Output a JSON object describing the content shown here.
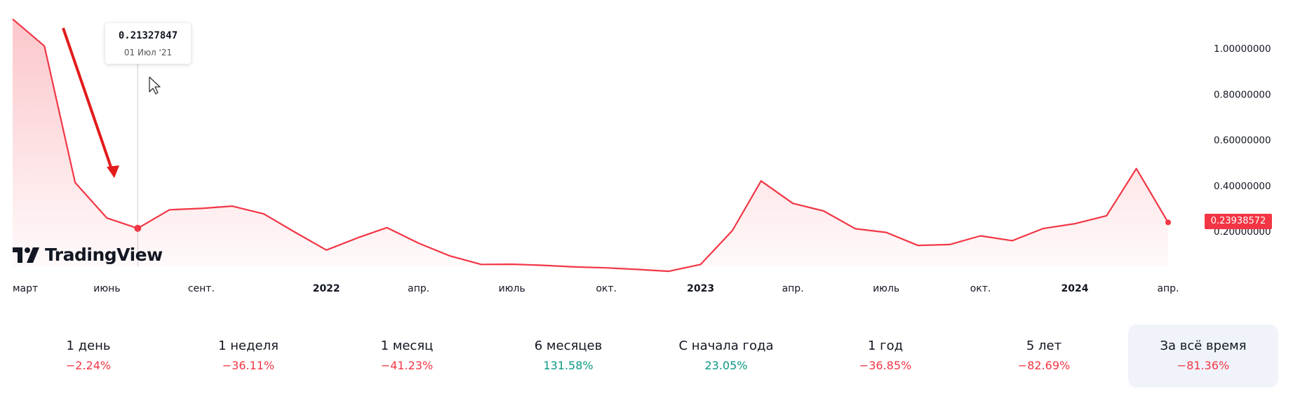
{
  "chart_data": {
    "type": "area",
    "line_color": "#f23645",
    "y_ticks": [
      "1.00000000",
      "0.80000000",
      "0.60000000",
      "0.40000000",
      "0.20000000"
    ],
    "y_tick_values": [
      1.0,
      0.8,
      0.6,
      0.4,
      0.2
    ],
    "ylim": [
      0.0,
      1.2
    ],
    "x_ticks": [
      {
        "label": "март",
        "date": "2021-03-01",
        "year": false
      },
      {
        "label": "июнь",
        "date": "2021-06-01",
        "year": false
      },
      {
        "label": "сент.",
        "date": "2021-09-01",
        "year": false
      },
      {
        "label": "2022",
        "date": "2022-01-01",
        "year": true
      },
      {
        "label": "апр.",
        "date": "2022-04-01",
        "year": false
      },
      {
        "label": "июль",
        "date": "2022-07-01",
        "year": false
      },
      {
        "label": "окт.",
        "date": "2022-10-01",
        "year": false
      },
      {
        "label": "2023",
        "date": "2023-01-01",
        "year": true
      },
      {
        "label": "апр.",
        "date": "2023-04-01",
        "year": false
      },
      {
        "label": "июль",
        "date": "2023-07-01",
        "year": false
      },
      {
        "label": "окт.",
        "date": "2023-10-01",
        "year": false
      },
      {
        "label": "2024",
        "date": "2024-01-01",
        "year": true
      },
      {
        "label": "апр.",
        "date": "2024-04-01",
        "year": false
      }
    ],
    "x": [
      "2021-03-01",
      "2021-04-01",
      "2021-05-01",
      "2021-06-01",
      "2021-07-01",
      "2021-08-01",
      "2021-09-01",
      "2021-10-01",
      "2021-11-01",
      "2021-12-01",
      "2022-01-01",
      "2022-02-01",
      "2022-03-01",
      "2022-04-01",
      "2022-05-01",
      "2022-06-01",
      "2022-07-01",
      "2022-08-01",
      "2022-09-01",
      "2022-10-01",
      "2022-11-01",
      "2022-12-01",
      "2023-01-01",
      "2023-02-01",
      "2023-03-01",
      "2023-04-01",
      "2023-05-01",
      "2023-06-01",
      "2023-07-01",
      "2023-08-01",
      "2023-09-01",
      "2023-10-01",
      "2023-11-01",
      "2023-12-01",
      "2024-01-01",
      "2024-02-01",
      "2024-03-01",
      "2024-04-01"
    ],
    "values": [
      1.128,
      1.01,
      0.413,
      0.258,
      0.213,
      0.294,
      0.3,
      0.31,
      0.276,
      0.197,
      0.118,
      0.172,
      0.216,
      0.148,
      0.093,
      0.055,
      0.056,
      0.051,
      0.044,
      0.04,
      0.033,
      0.025,
      0.055,
      0.203,
      0.42,
      0.322,
      0.289,
      0.211,
      0.195,
      0.138,
      0.142,
      0.18,
      0.159,
      0.212,
      0.233,
      0.268,
      0.474,
      0.239
    ],
    "tooltip": {
      "value": "0.21327847",
      "date": "01 Июл '21",
      "index": 4
    },
    "last_value_label": "0.23938572"
  },
  "brand": {
    "name": "TradingView"
  },
  "periods": [
    {
      "label": "1 день",
      "value": "−2.24%",
      "positive": false,
      "active": false
    },
    {
      "label": "1 неделя",
      "value": "−36.11%",
      "positive": false,
      "active": false
    },
    {
      "label": "1 месяц",
      "value": "−41.23%",
      "positive": false,
      "active": false
    },
    {
      "label": "6 месяцев",
      "value": "131.58%",
      "positive": true,
      "active": false
    },
    {
      "label": "С начала года",
      "value": "23.05%",
      "positive": true,
      "active": false
    },
    {
      "label": "1 год",
      "value": "−36.85%",
      "positive": false,
      "active": false
    },
    {
      "label": "5 лет",
      "value": "−82.69%",
      "positive": false,
      "active": false
    },
    {
      "label": "За всё время",
      "value": "−81.36%",
      "positive": false,
      "active": true
    }
  ]
}
